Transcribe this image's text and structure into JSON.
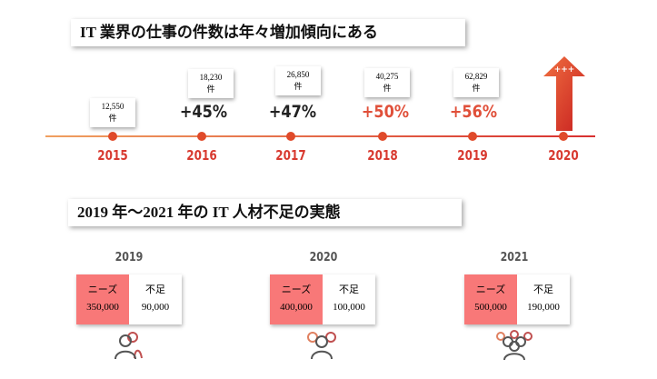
{
  "section1": {
    "title": "IT 業界の仕事の件数は年々増加傾向にある"
  },
  "timeline": [
    {
      "year": "2015",
      "count": "12,550",
      "unit": "件",
      "growth": ""
    },
    {
      "year": "2016",
      "count": "18,230",
      "unit": "件",
      "growth": "+45%",
      "color": "#222222"
    },
    {
      "year": "2017",
      "count": "26,850",
      "unit": "件",
      "growth": "+47%",
      "color": "#222222"
    },
    {
      "year": "2018",
      "count": "40,275",
      "unit": "件",
      "growth": "+50%",
      "color": "#e0503a"
    },
    {
      "year": "2019",
      "count": "62,829",
      "unit": "件",
      "growth": "+56%",
      "color": "#e0503a"
    },
    {
      "year": "2020",
      "arrow_label": "+++"
    }
  ],
  "section2": {
    "title": "2019 年～2021 年の IT 人材不足の実態"
  },
  "shortage": [
    {
      "year": "2019",
      "need_label": "ニーズ",
      "need": "350,000",
      "short_label": "不足",
      "short": "90,000"
    },
    {
      "year": "2020",
      "need_label": "ニーズ",
      "need": "400,000",
      "short_label": "不足",
      "short": "100,000"
    },
    {
      "year": "2021",
      "need_label": "ニーズ",
      "need": "500,000",
      "short_label": "不足",
      "short": "190,000"
    }
  ],
  "colors": {
    "accent": "#d83a30",
    "need_bg": "#f87878"
  }
}
